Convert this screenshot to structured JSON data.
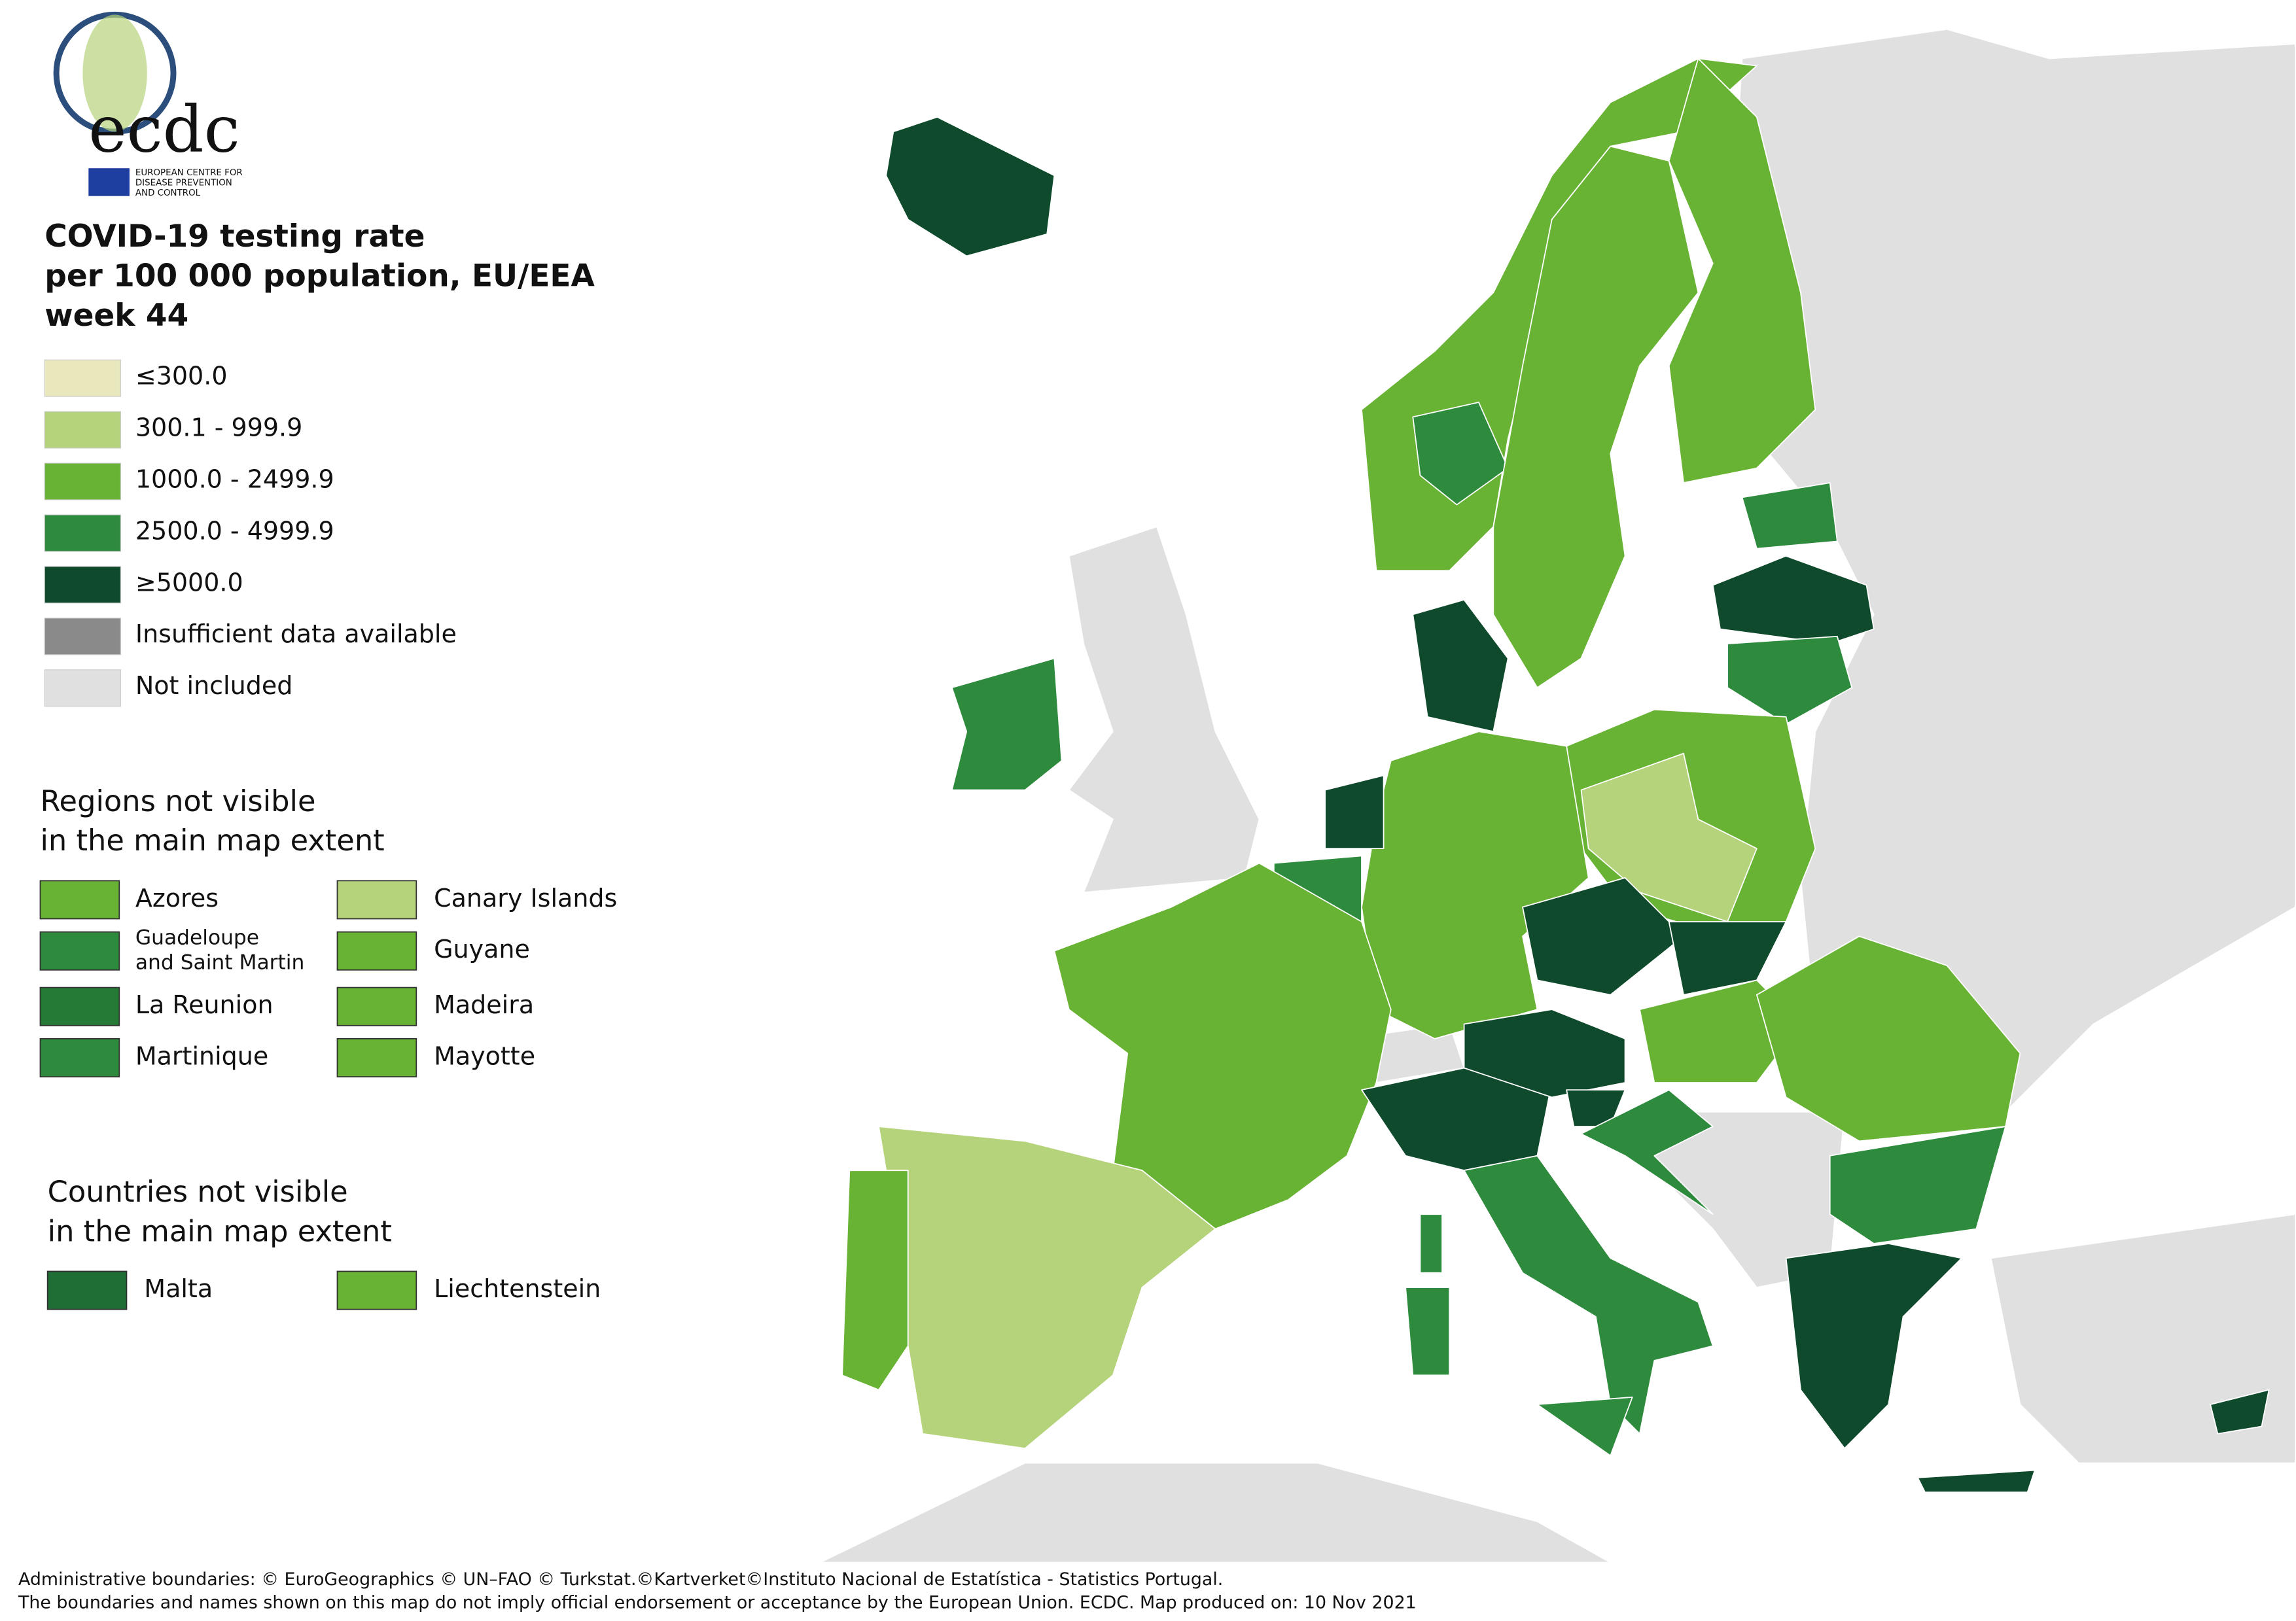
{
  "logo": {
    "text": "ecdc",
    "caption": [
      "EUROPEAN CENTRE FOR",
      "DISEASE PREVENTION",
      "AND CONTROL"
    ]
  },
  "title": [
    "COVID-19 testing rate",
    "per 100 000 population, EU/EEA",
    "week 44"
  ],
  "legend": [
    {
      "label": "≤300.0",
      "color": "#e8e8bc"
    },
    {
      "label": "300.1 - 999.9",
      "color": "#b5d37a"
    },
    {
      "label": "1000.0 - 2499.9",
      "color": "#68b334"
    },
    {
      "label": "2500.0 - 4999.9",
      "color": "#2e8b3e"
    },
    {
      "label": "≥5000.0",
      "color": "#0e4a2b"
    },
    {
      "label": "Insufficient data available",
      "color": "#8a8a8a"
    },
    {
      "label": "Not included",
      "color": "#e0e0e0"
    }
  ],
  "regions": {
    "title": [
      "Regions not visible",
      "in the main map extent"
    ],
    "items": [
      {
        "lines": [
          "Azores"
        ],
        "color": "#68b334"
      },
      {
        "lines": [
          "Guadeloupe",
          "and Saint Martin"
        ],
        "color": "#2e8b3e"
      },
      {
        "lines": [
          "La Reunion"
        ],
        "color": "#257a36"
      },
      {
        "lines": [
          "Martinique"
        ],
        "color": "#2e8b3e"
      },
      {
        "lines": [
          "Canary Islands"
        ],
        "color": "#b5d37a"
      },
      {
        "lines": [
          "Guyane"
        ],
        "color": "#68b334"
      },
      {
        "lines": [
          "Madeira"
        ],
        "color": "#68b334"
      },
      {
        "lines": [
          "Mayotte"
        ],
        "color": "#68b334"
      }
    ]
  },
  "countries": {
    "title": [
      "Countries not visible",
      "in the main map extent"
    ],
    "items": [
      {
        "lines": [
          "Malta"
        ],
        "color": "#1f6e35"
      },
      {
        "lines": [
          "Liechtenstein"
        ],
        "color": "#68b334"
      }
    ]
  },
  "footer": [
    "Administrative boundaries: © EuroGeographics © UN–FAO © Turkstat.©Kartverket©Instituto Nacional de Estatística - Statistics Portugal.",
    "The boundaries and names shown on this map do not imply official endorsement or acceptance by the European Union. ECDC. Map produced on: 10 Nov 2021"
  ]
}
